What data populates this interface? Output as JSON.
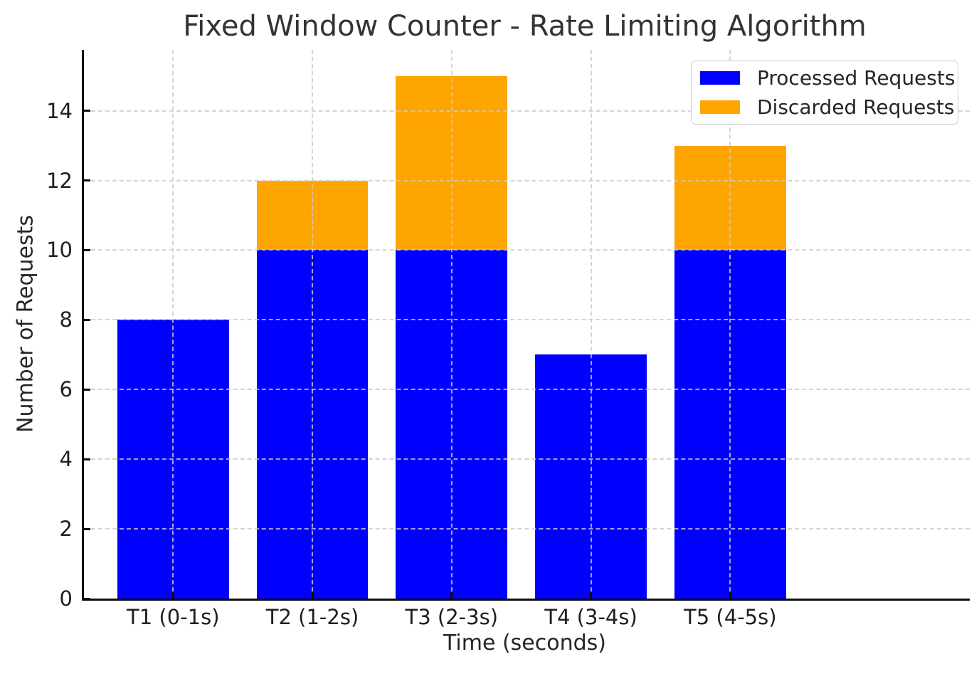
{
  "title": "Fixed Window Counter - Rate Limiting Algorithm",
  "chart_data": {
    "type": "bar",
    "stacked": true,
    "title": "Fixed Window Counter - Rate Limiting Algorithm",
    "xlabel": "Time (seconds)",
    "ylabel": "Number of Requests",
    "categories": [
      "T1 (0-1s)",
      "T2 (1-2s)",
      "T3 (2-3s)",
      "T4 (3-4s)",
      "T5 (4-5s)"
    ],
    "series": [
      {
        "name": "Processed Requests",
        "color": "#0000ff",
        "values": [
          8,
          10,
          10,
          7,
          10
        ]
      },
      {
        "name": "Discarded Requests",
        "color": "#ffa500",
        "values": [
          0,
          2,
          5,
          0,
          3
        ]
      }
    ],
    "totals": [
      8,
      12,
      15,
      7,
      13
    ],
    "yticks": [
      0,
      2,
      4,
      6,
      8,
      10,
      12,
      14
    ],
    "ylim": [
      0,
      15.75
    ],
    "grid": true,
    "grid_style": "dashed",
    "grid_above_bars": true,
    "tick_direction": "in",
    "legend_position": "upper right",
    "colors": {
      "processed": "#0000ff",
      "discarded": "#ffa500",
      "grid": "#cacaca",
      "spine": "#0d0d0d",
      "text": "#262626",
      "background": "#ffffff"
    }
  }
}
